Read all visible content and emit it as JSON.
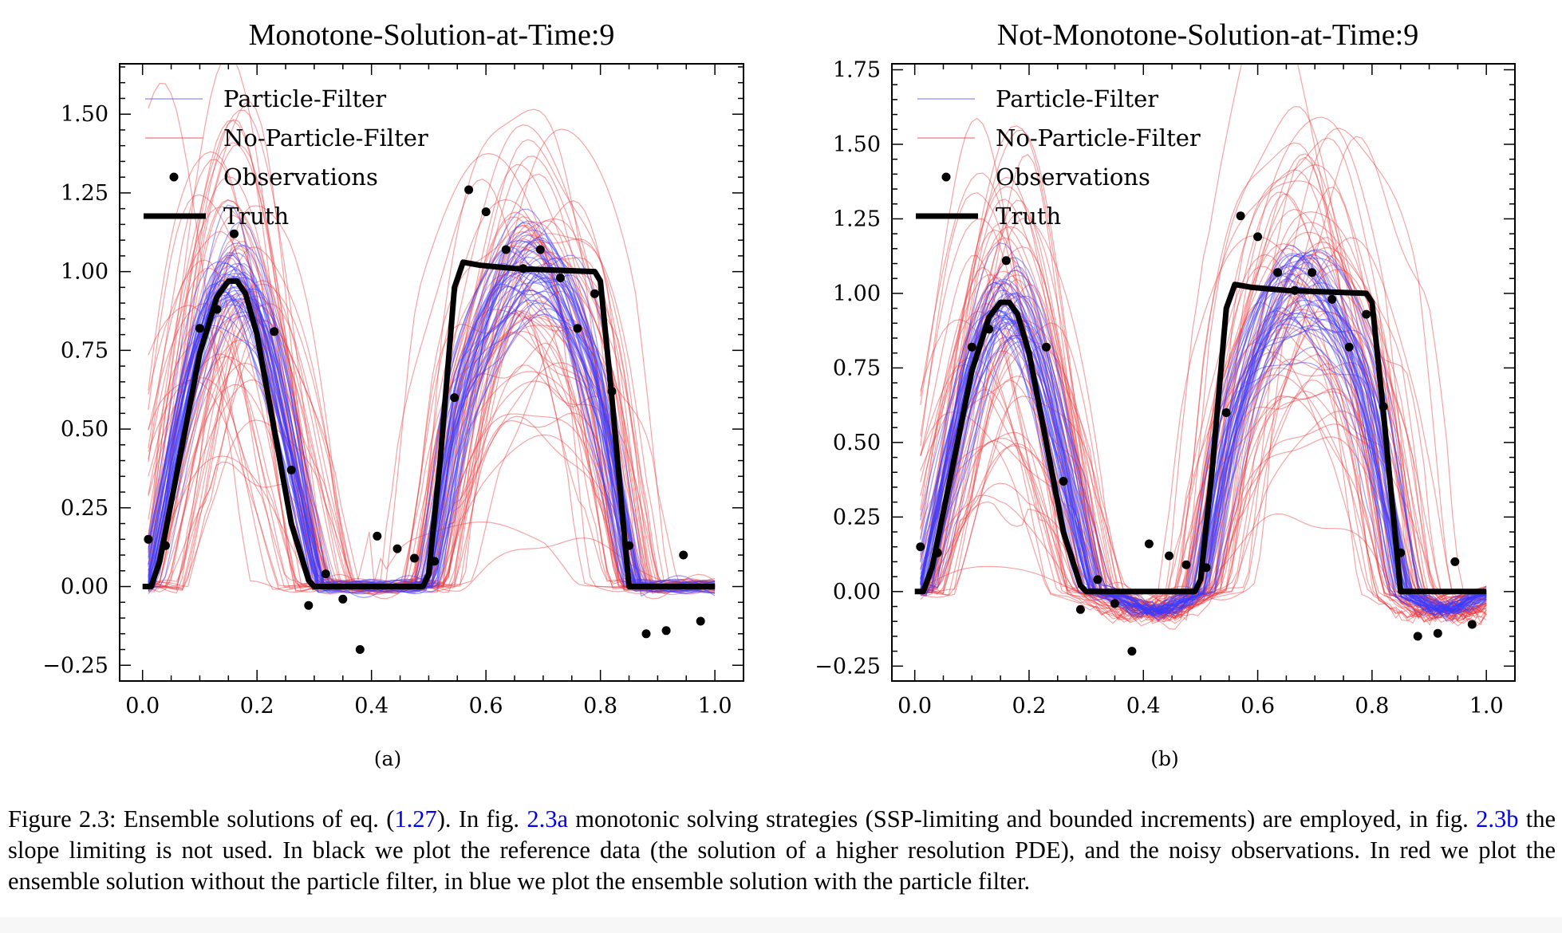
{
  "chart_data": [
    {
      "id": "a",
      "type": "line",
      "title": "Monotone-Solution-at-Time:9",
      "subfigure_label": "(a)",
      "xlabel": "",
      "ylabel": "",
      "xlim": [
        -0.04,
        1.05
      ],
      "ylim": [
        -0.3,
        1.66
      ],
      "xticks": [
        0.0,
        0.2,
        0.4,
        0.6,
        0.8,
        1.0
      ],
      "xtick_labels": [
        "0.0",
        "0.2",
        "0.4",
        "0.6",
        "0.8",
        "1.0"
      ],
      "yticks": [
        -0.25,
        0.0,
        0.25,
        0.5,
        0.75,
        1.0,
        1.25,
        1.5
      ],
      "ytick_labels": [
        "−0.25",
        "0.00",
        "0.25",
        "0.50",
        "0.75",
        "1.00",
        "1.25",
        "1.50"
      ],
      "grid": false,
      "legend": {
        "placement": "top-left",
        "entries": [
          {
            "label": "Particle-Filter",
            "kind": "line",
            "color": "#4c4cff"
          },
          {
            "label": "No-Particle-Filter",
            "kind": "line",
            "color": "#e8353a"
          },
          {
            "label": "Observations",
            "kind": "marker",
            "color": "#000000"
          },
          {
            "label": "Truth",
            "kind": "thick-line",
            "color": "#000000"
          }
        ]
      },
      "series": [
        {
          "name": "Truth",
          "color": "#000000",
          "x": [
            0.0,
            0.015,
            0.03,
            0.06,
            0.1,
            0.13,
            0.15,
            0.165,
            0.18,
            0.2,
            0.23,
            0.26,
            0.29,
            0.3,
            0.32,
            0.4,
            0.49,
            0.5,
            0.52,
            0.545,
            0.56,
            0.59,
            0.65,
            0.72,
            0.79,
            0.8,
            0.82,
            0.845,
            0.85,
            0.87,
            1.0
          ],
          "y": [
            0.0,
            0.0,
            0.08,
            0.36,
            0.74,
            0.92,
            0.97,
            0.97,
            0.93,
            0.8,
            0.5,
            0.2,
            0.02,
            0.0,
            0.0,
            0.0,
            0.0,
            0.04,
            0.4,
            0.95,
            1.03,
            1.02,
            1.01,
            1.005,
            1.0,
            0.97,
            0.6,
            0.1,
            0.0,
            0.0,
            0.0
          ]
        },
        {
          "name": "Observations",
          "color": "#000000",
          "x": [
            0.01,
            0.04,
            0.1,
            0.13,
            0.16,
            0.23,
            0.26,
            0.29,
            0.32,
            0.35,
            0.38,
            0.41,
            0.445,
            0.475,
            0.51,
            0.545,
            0.57,
            0.6,
            0.635,
            0.665,
            0.695,
            0.73,
            0.76,
            0.79,
            0.82,
            0.85,
            0.88,
            0.915,
            0.945,
            0.975
          ],
          "y": [
            0.15,
            0.13,
            0.82,
            0.88,
            1.12,
            0.81,
            0.37,
            -0.06,
            0.04,
            -0.04,
            -0.2,
            0.16,
            0.12,
            0.09,
            0.08,
            0.6,
            1.26,
            1.19,
            1.07,
            1.01,
            1.07,
            0.98,
            0.82,
            0.93,
            0.62,
            0.13,
            -0.15,
            -0.14,
            0.1,
            -0.11
          ]
        }
      ],
      "ensembles": [
        {
          "name": "No-Particle-Filter",
          "color": "#e8353a",
          "members": 60,
          "amp_spread": 0.28,
          "shift_spread": 0.035,
          "min_floor": 0.0,
          "opacity": 0.45
        },
        {
          "name": "Particle-Filter",
          "color": "#3a3aff",
          "members": 40,
          "amp_spread": 0.07,
          "shift_spread": 0.012,
          "min_floor": 0.0,
          "opacity": 0.5
        }
      ]
    },
    {
      "id": "b",
      "type": "line",
      "title": "Not-Monotone-Solution-at-Time:9",
      "subfigure_label": "(b)",
      "xlabel": "",
      "ylabel": "",
      "xlim": [
        -0.04,
        1.05
      ],
      "ylim": [
        -0.3,
        1.77
      ],
      "xticks": [
        0.0,
        0.2,
        0.4,
        0.6,
        0.8,
        1.0
      ],
      "xtick_labels": [
        "0.0",
        "0.2",
        "0.4",
        "0.6",
        "0.8",
        "1.0"
      ],
      "yticks": [
        -0.25,
        0.0,
        0.25,
        0.5,
        0.75,
        1.0,
        1.25,
        1.5,
        1.75
      ],
      "ytick_labels": [
        "−0.25",
        "0.00",
        "0.25",
        "0.50",
        "0.75",
        "1.00",
        "1.25",
        "1.50",
        "1.75"
      ],
      "grid": false,
      "legend": {
        "placement": "top-left",
        "entries": [
          {
            "label": "Particle-Filter",
            "kind": "line",
            "color": "#4c4cff"
          },
          {
            "label": "No-Particle-Filter",
            "kind": "line",
            "color": "#e8353a"
          },
          {
            "label": "Observations",
            "kind": "marker",
            "color": "#000000"
          },
          {
            "label": "Truth",
            "kind": "thick-line",
            "color": "#000000"
          }
        ]
      },
      "series": [
        {
          "name": "Truth",
          "color": "#000000",
          "x": [
            0.0,
            0.015,
            0.03,
            0.06,
            0.1,
            0.13,
            0.15,
            0.165,
            0.18,
            0.2,
            0.23,
            0.26,
            0.29,
            0.3,
            0.32,
            0.4,
            0.49,
            0.5,
            0.52,
            0.545,
            0.56,
            0.59,
            0.65,
            0.72,
            0.79,
            0.8,
            0.82,
            0.845,
            0.85,
            0.87,
            1.0
          ],
          "y": [
            0.0,
            0.0,
            0.08,
            0.36,
            0.74,
            0.92,
            0.97,
            0.97,
            0.93,
            0.8,
            0.5,
            0.2,
            0.02,
            0.0,
            0.0,
            0.0,
            0.0,
            0.04,
            0.4,
            0.95,
            1.03,
            1.02,
            1.01,
            1.005,
            1.0,
            0.97,
            0.6,
            0.1,
            0.0,
            0.0,
            0.0
          ]
        },
        {
          "name": "Observations",
          "color": "#000000",
          "x": [
            0.01,
            0.04,
            0.1,
            0.13,
            0.16,
            0.23,
            0.26,
            0.29,
            0.32,
            0.35,
            0.38,
            0.41,
            0.445,
            0.475,
            0.51,
            0.545,
            0.57,
            0.6,
            0.635,
            0.665,
            0.695,
            0.73,
            0.76,
            0.79,
            0.82,
            0.85,
            0.88,
            0.915,
            0.945,
            0.975
          ],
          "y": [
            0.15,
            0.13,
            0.82,
            0.88,
            1.11,
            0.82,
            0.37,
            -0.06,
            0.04,
            -0.04,
            -0.2,
            0.16,
            0.12,
            0.09,
            0.08,
            0.6,
            1.26,
            1.19,
            1.07,
            1.01,
            1.07,
            0.98,
            0.82,
            0.93,
            0.62,
            0.13,
            -0.15,
            -0.14,
            0.1,
            -0.11
          ]
        }
      ],
      "ensembles": [
        {
          "name": "No-Particle-Filter",
          "color": "#e8353a",
          "members": 60,
          "amp_spread": 0.3,
          "shift_spread": 0.035,
          "min_floor": -0.1,
          "opacity": 0.45
        },
        {
          "name": "Particle-Filter",
          "color": "#3a3aff",
          "members": 40,
          "amp_spread": 0.09,
          "shift_spread": 0.012,
          "min_floor": -0.08,
          "opacity": 0.5
        }
      ]
    }
  ],
  "caption": {
    "segments": [
      {
        "text": "Figure 2.3: Ensemble solutions of eq. (",
        "ref": false
      },
      {
        "text": "1.27",
        "ref": true
      },
      {
        "text": "). In fig. ",
        "ref": false
      },
      {
        "text": "2.3a",
        "ref": true
      },
      {
        "text": " monotonic solving strategies (SSP-limiting and bounded increments) are employed, in fig. ",
        "ref": false
      },
      {
        "text": "2.3b",
        "ref": true
      },
      {
        "text": " the slope limiting is not used. In black we plot the reference data (the solution of a higher resolution PDE), and the noisy observations. In red we plot the ensemble solution without the particle filter, in blue we plot the ensemble solution with the particle filter.",
        "ref": false
      }
    ]
  }
}
